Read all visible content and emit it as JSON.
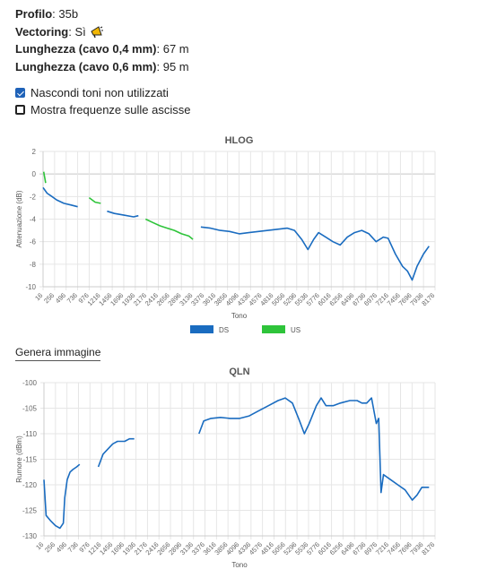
{
  "info": {
    "profilo_label": "Profilo",
    "profilo_value": "35b",
    "vectoring_label": "Vectoring",
    "vectoring_value": "Sì",
    "vectoring_icon": "megaphone-icon",
    "l04_label": "Lunghezza (cavo 0,4 mm)",
    "l04_value": "67 m",
    "l06_label": "Lunghezza (cavo 0,6 mm)",
    "l06_value": "95 m"
  },
  "options": {
    "hide_tones_label": "Nascondi toni non utilizzati",
    "hide_tones_checked": true,
    "show_freq_label": "Mostra frequenze sulle ascisse",
    "show_freq_checked": false
  },
  "genera_immagine": "Genera immagine",
  "colors": {
    "ds": "#1a6cc0",
    "us": "#2ec43a",
    "grid": "#e6e6e6"
  },
  "chart_data": [
    {
      "type": "line",
      "title": "HLOG",
      "xlabel": "Tono",
      "ylabel": "Attenuazione (dB)",
      "ylim": [
        -10,
        2
      ],
      "yticks": [
        2,
        0,
        -2,
        -4,
        -6,
        -8,
        -10
      ],
      "xticks": [
        "16",
        "256",
        "496",
        "736",
        "976",
        "1216",
        "1456",
        "1696",
        "1936",
        "2176",
        "2416",
        "2656",
        "2896",
        "3136",
        "3376",
        "3616",
        "3856",
        "4096",
        "4336",
        "4576",
        "4816",
        "5056",
        "5296",
        "5536",
        "5776",
        "6016",
        "6256",
        "6496",
        "6736",
        "6976",
        "7216",
        "7456",
        "7696",
        "7936",
        "8176"
      ],
      "legend": [
        "DS",
        "US"
      ],
      "legend_position": "bottom",
      "series": [
        {
          "name": "DS",
          "segments": [
            [
              [
                16,
                -1.2
              ],
              [
                100,
                -1.7
              ],
              [
                200,
                -2.0
              ],
              [
                300,
                -2.3
              ],
              [
                450,
                -2.6
              ],
              [
                600,
                -2.75
              ],
              [
                736,
                -2.9
              ]
            ],
            [
              [
                1350,
                -3.3
              ],
              [
                1500,
                -3.5
              ],
              [
                1700,
                -3.65
              ],
              [
                1900,
                -3.8
              ],
              [
                2000,
                -3.7
              ]
            ],
            [
              [
                3300,
                -4.7
              ],
              [
                3500,
                -4.8
              ],
              [
                3700,
                -5.0
              ],
              [
                3900,
                -5.1
              ],
              [
                4100,
                -5.3
              ],
              [
                4300,
                -5.2
              ],
              [
                4500,
                -5.1
              ],
              [
                4700,
                -5.0
              ],
              [
                4900,
                -4.9
              ],
              [
                5100,
                -4.8
              ],
              [
                5250,
                -5.0
              ],
              [
                5400,
                -5.8
              ],
              [
                5530,
                -6.7
              ],
              [
                5650,
                -5.8
              ],
              [
                5750,
                -5.2
              ],
              [
                5900,
                -5.6
              ],
              [
                6050,
                -6.0
              ],
              [
                6200,
                -6.3
              ],
              [
                6350,
                -5.6
              ],
              [
                6500,
                -5.2
              ],
              [
                6650,
                -5.0
              ],
              [
                6800,
                -5.3
              ],
              [
                6950,
                -6.0
              ],
              [
                7100,
                -5.6
              ],
              [
                7200,
                -5.7
              ],
              [
                7350,
                -7.1
              ],
              [
                7500,
                -8.2
              ],
              [
                7600,
                -8.6
              ],
              [
                7700,
                -9.4
              ],
              [
                7800,
                -8.2
              ],
              [
                7936,
                -7.1
              ],
              [
                8050,
                -6.4
              ]
            ]
          ]
        },
        {
          "name": "US",
          "segments": [
            [
              [
                30,
                0.2
              ],
              [
                50,
                -0.3
              ],
              [
                70,
                -0.8
              ]
            ],
            [
              [
                976,
                -2.1
              ],
              [
                1100,
                -2.5
              ],
              [
                1216,
                -2.6
              ]
            ],
            [
              [
                2150,
                -4.0
              ],
              [
                2300,
                -4.3
              ],
              [
                2450,
                -4.6
              ],
              [
                2600,
                -4.8
              ],
              [
                2750,
                -5.0
              ],
              [
                2900,
                -5.3
              ],
              [
                3050,
                -5.5
              ],
              [
                3136,
                -5.8
              ]
            ]
          ]
        }
      ]
    },
    {
      "type": "line",
      "title": "QLN",
      "xlabel": "Tono",
      "ylabel": "Rumore (dBm)",
      "ylim": [
        -130,
        -100
      ],
      "yticks": [
        -100,
        -105,
        -110,
        -115,
        -120,
        -125,
        -130
      ],
      "xticks": [
        "16",
        "256",
        "496",
        "736",
        "976",
        "1216",
        "1456",
        "1696",
        "1936",
        "2176",
        "2416",
        "2656",
        "2896",
        "3136",
        "3376",
        "3616",
        "3856",
        "4096",
        "4336",
        "4576",
        "4816",
        "5056",
        "5296",
        "5536",
        "5776",
        "6016",
        "6256",
        "6496",
        "6736",
        "6976",
        "7216",
        "7456",
        "7696",
        "7936",
        "8176"
      ],
      "series": [
        {
          "name": "",
          "segments": [
            [
              [
                16,
                -119
              ],
              [
                60,
                -126
              ],
              [
                150,
                -127
              ],
              [
                256,
                -128
              ],
              [
                350,
                -128.5
              ],
              [
                420,
                -127.5
              ],
              [
                450,
                -122.5
              ],
              [
                500,
                -119
              ],
              [
                560,
                -117.5
              ],
              [
                620,
                -117
              ],
              [
                700,
                -116.5
              ],
              [
                760,
                -116
              ]
            ],
            [
              [
                1150,
                -116.5
              ],
              [
                1250,
                -114
              ],
              [
                1350,
                -113
              ],
              [
                1450,
                -112
              ],
              [
                1550,
                -111.5
              ],
              [
                1700,
                -111.5
              ],
              [
                1800,
                -111
              ],
              [
                1900,
                -111
              ]
            ],
            [
              [
                3250,
                -110
              ],
              [
                3350,
                -107.5
              ],
              [
                3500,
                -107
              ],
              [
                3700,
                -106.8
              ],
              [
                3900,
                -107
              ],
              [
                4100,
                -107
              ],
              [
                4300,
                -106.5
              ],
              [
                4500,
                -105.5
              ],
              [
                4700,
                -104.5
              ],
              [
                4900,
                -103.5
              ],
              [
                5050,
                -103
              ],
              [
                5200,
                -104
              ],
              [
                5350,
                -107.5
              ],
              [
                5450,
                -110
              ],
              [
                5550,
                -108
              ],
              [
                5700,
                -104.5
              ],
              [
                5800,
                -103
              ],
              [
                5900,
                -104.5
              ],
              [
                6050,
                -104.5
              ],
              [
                6200,
                -104
              ],
              [
                6400,
                -103.5
              ],
              [
                6550,
                -103.5
              ],
              [
                6650,
                -104
              ],
              [
                6750,
                -104
              ],
              [
                6850,
                -103
              ],
              [
                6950,
                -108
              ],
              [
                7000,
                -107
              ],
              [
                7050,
                -121.5
              ],
              [
                7100,
                -118
              ],
              [
                7250,
                -119
              ],
              [
                7400,
                -120
              ],
              [
                7550,
                -121
              ],
              [
                7700,
                -123
              ],
              [
                7800,
                -122
              ],
              [
                7900,
                -120.5
              ],
              [
                8050,
                -120.5
              ]
            ]
          ]
        }
      ]
    }
  ]
}
